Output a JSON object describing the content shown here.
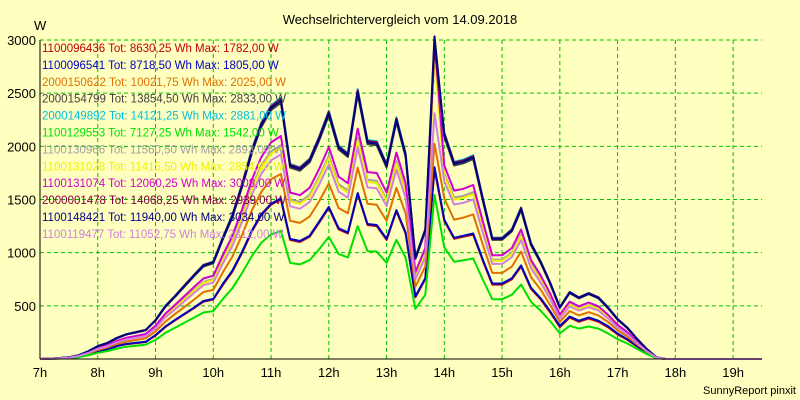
{
  "footer": "SunnyReport pinxit",
  "chart_data": {
    "type": "line",
    "title": "Wechselrichtervergleich vom 14.09.2018",
    "ylabel": "W",
    "xlabel": "",
    "ylim": [
      0,
      3000
    ],
    "xlim": [
      7,
      19.5
    ],
    "yticks": [
      500,
      1000,
      1500,
      2000,
      2500,
      3000
    ],
    "xticks": [
      "7h",
      "8h",
      "9h",
      "10h",
      "11h",
      "12h",
      "13h",
      "14h",
      "15h",
      "16h",
      "17h",
      "18h",
      "19h"
    ],
    "grid": true,
    "legend_position": "top-left",
    "x": [
      7.0,
      7.17,
      7.33,
      7.5,
      7.67,
      7.83,
      8.0,
      8.17,
      8.33,
      8.5,
      8.67,
      8.83,
      9.0,
      9.17,
      9.33,
      9.5,
      9.67,
      9.83,
      10.0,
      10.17,
      10.33,
      10.5,
      10.67,
      10.83,
      11.0,
      11.17,
      11.33,
      11.5,
      11.67,
      11.83,
      12.0,
      12.17,
      12.33,
      12.5,
      12.67,
      12.83,
      13.0,
      13.17,
      13.33,
      13.5,
      13.67,
      13.83,
      14.0,
      14.17,
      14.33,
      14.5,
      14.67,
      14.83,
      15.0,
      15.17,
      15.33,
      15.5,
      15.67,
      15.83,
      16.0,
      16.17,
      16.33,
      16.5,
      16.67,
      16.83,
      17.0,
      17.17,
      17.33,
      17.5,
      17.67,
      17.83,
      18.0,
      18.17,
      18.33,
      18.5,
      18.67,
      18.83,
      19.0,
      19.17,
      19.33,
      19.5
    ],
    "series": [
      {
        "name": "1100096436 Tot: 8630,25 Wh Max: 1782,00 W",
        "color": "#c00000",
        "values": [
          0,
          2,
          5,
          10,
          20,
          40,
          70,
          90,
          120,
          140,
          150,
          160,
          220,
          300,
          360,
          420,
          480,
          540,
          560,
          700,
          820,
          1000,
          1200,
          1350,
          1450,
          1500,
          1120,
          1100,
          1150,
          1280,
          1420,
          1220,
          1180,
          1550,
          1260,
          1250,
          1120,
          1390,
          1180,
          580,
          750,
          1782,
          1300,
          1130,
          1150,
          1170,
          920,
          700,
          700,
          750,
          870,
          660,
          560,
          440,
          300,
          390,
          350,
          380,
          350,
          300,
          230,
          180,
          120,
          60,
          10,
          0,
          0,
          0,
          0,
          0,
          0,
          0,
          0,
          0,
          0,
          0
        ]
      },
      {
        "name": "1100096541 Tot: 8718,50 Wh Max: 1805,00 W",
        "color": "#0000c0",
        "values": [
          0,
          2,
          5,
          10,
          22,
          42,
          72,
          92,
          122,
          142,
          152,
          162,
          225,
          305,
          365,
          425,
          485,
          545,
          565,
          710,
          830,
          1010,
          1210,
          1360,
          1460,
          1510,
          1130,
          1110,
          1160,
          1290,
          1430,
          1230,
          1190,
          1560,
          1270,
          1260,
          1130,
          1400,
          1190,
          590,
          760,
          1805,
          1310,
          1140,
          1160,
          1180,
          930,
          710,
          710,
          760,
          880,
          670,
          570,
          450,
          310,
          400,
          360,
          390,
          360,
          310,
          240,
          185,
          125,
          62,
          10,
          0,
          0,
          0,
          0,
          0,
          0,
          0,
          0,
          0,
          0,
          0
        ]
      },
      {
        "name": "2000150622 Tot: 10021,75 Wh Max: 2025,00 W",
        "color": "#e07000",
        "values": [
          0,
          3,
          6,
          12,
          25,
          50,
          85,
          110,
          140,
          165,
          180,
          195,
          260,
          350,
          420,
          490,
          560,
          630,
          650,
          820,
          960,
          1170,
          1400,
          1570,
          1690,
          1740,
          1300,
          1280,
          1340,
          1480,
          1650,
          1420,
          1370,
          1800,
          1460,
          1450,
          1300,
          1610,
          1370,
          680,
          870,
          2025,
          1510,
          1310,
          1330,
          1360,
          1070,
          810,
          810,
          870,
          1010,
          770,
          650,
          510,
          350,
          450,
          410,
          440,
          410,
          350,
          270,
          210,
          140,
          70,
          12,
          0,
          0,
          0,
          0,
          0,
          0,
          0,
          0,
          0,
          0,
          0
        ]
      },
      {
        "name": "2000154799 Tot: 13854,50 Wh Max: 2833,00 W",
        "color": "#404040",
        "values": [
          0,
          4,
          8,
          16,
          35,
          70,
          120,
          150,
          195,
          230,
          250,
          270,
          360,
          490,
          580,
          680,
          780,
          870,
          900,
          1130,
          1330,
          1620,
          1940,
          2180,
          2340,
          2410,
          1800,
          1770,
          1850,
          2050,
          2290,
          1970,
          1900,
          2490,
          2020,
          2010,
          1800,
          2230,
          1900,
          940,
          1200,
          2833,
          2090,
          1820,
          1840,
          1880,
          1480,
          1120,
          1120,
          1200,
          1400,
          1070,
          900,
          710,
          480,
          620,
          570,
          610,
          570,
          480,
          370,
          290,
          190,
          95,
          16,
          0,
          0,
          0,
          0,
          0,
          0,
          0,
          0,
          0,
          0,
          0
        ]
      },
      {
        "name": "2000149892 Tot: 14121,25 Wh Max: 2881,00 W",
        "color": "#00c0e0",
        "values": [
          0,
          4,
          8,
          16,
          36,
          72,
          122,
          153,
          199,
          234,
          255,
          275,
          367,
          500,
          591,
          693,
          795,
          887,
          917,
          1152,
          1356,
          1651,
          1977,
          2222,
          2385,
          2456,
          1835,
          1804,
          1886,
          2090,
          2334,
          2008,
          1937,
          2538,
          2059,
          2049,
          1835,
          2273,
          1937,
          958,
          1223,
          2881,
          2130,
          1855,
          1876,
          1916,
          1509,
          1142,
          1142,
          1223,
          1427,
          1091,
          917,
          724,
          489,
          632,
          581,
          622,
          581,
          489,
          377,
          296,
          194,
          97,
          16,
          0,
          0,
          0,
          0,
          0,
          0,
          0,
          0,
          0,
          0,
          0
        ]
      },
      {
        "name": "1100129553 Tot: 7127,25 Wh Max: 1542,00 W",
        "color": "#00e000",
        "values": [
          0,
          2,
          4,
          8,
          17,
          34,
          58,
          75,
          98,
          116,
          125,
          135,
          180,
          245,
          292,
          340,
          390,
          437,
          450,
          567,
          665,
          811,
          970,
          1092,
          1172,
          1205,
          904,
          890,
          930,
          1030,
          1148,
          988,
          955,
          1250,
          1015,
          1010,
          904,
          1120,
          955,
          472,
          604,
          1542,
          1050,
          915,
          928,
          945,
          743,
          562,
          562,
          604,
          700,
          538,
          452,
          357,
          242,
          312,
          286,
          306,
          286,
          242,
          186,
          146,
          97,
          48,
          8,
          0,
          0,
          0,
          0,
          0,
          0,
          0,
          0,
          0,
          0,
          0
        ]
      },
      {
        "name": "1100130966 Tot: 11560,50 Wh Max: 2893,00 W",
        "color": "#a0a0a0",
        "values": [
          0,
          3,
          7,
          13,
          29,
          58,
          100,
          125,
          163,
          192,
          209,
          225,
          300,
          409,
          484,
          567,
          651,
          726,
          751,
          943,
          1110,
          1352,
          1619,
          1819,
          1953,
          2011,
          1502,
          1477,
          1544,
          1711,
          1911,
          1644,
          1585,
          2078,
          1686,
          1677,
          1502,
          1861,
          1585,
          784,
          1001,
          2893,
          1744,
          1519,
          1535,
          1569,
          1235,
          935,
          935,
          1001,
          1168,
          893,
          751,
          592,
          400,
          517,
          476,
          509,
          476,
          400,
          309,
          242,
          159,
          79,
          13,
          0,
          0,
          0,
          0,
          0,
          0,
          0,
          0,
          0,
          0,
          0
        ]
      },
      {
        "name": "1100131028 Tot: 11415,50 Wh Max: 2854,00 W",
        "color": "#f0f000",
        "values": [
          0,
          3,
          7,
          13,
          29,
          57,
          99,
          124,
          161,
          190,
          206,
          222,
          297,
          404,
          478,
          560,
          643,
          717,
          742,
          932,
          1097,
          1336,
          1599,
          1797,
          1929,
          1987,
          1484,
          1459,
          1525,
          1690,
          1888,
          1624,
          1566,
          2053,
          1665,
          1657,
          1484,
          1838,
          1566,
          775,
          989,
          2854,
          1723,
          1500,
          1517,
          1550,
          1220,
          923,
          923,
          989,
          1154,
          882,
          742,
          585,
          396,
          511,
          470,
          503,
          470,
          396,
          305,
          239,
          157,
          78,
          13,
          0,
          0,
          0,
          0,
          0,
          0,
          0,
          0,
          0,
          0,
          0
        ]
      },
      {
        "name": "1100131074 Tot: 12060,25 Wh Max: 3008,00 W",
        "color": "#d000d0",
        "values": [
          0,
          3,
          7,
          14,
          30,
          61,
          104,
          130,
          170,
          200,
          218,
          235,
          313,
          426,
          505,
          592,
          679,
          757,
          783,
          984,
          1158,
          1410,
          1688,
          1897,
          2036,
          2097,
          1566,
          1540,
          1610,
          1784,
          1993,
          1714,
          1653,
          2167,
          1758,
          1749,
          1566,
          1941,
          1653,
          818,
          1044,
          3008,
          1819,
          1584,
          1601,
          1636,
          1288,
          975,
          975,
          1044,
          1218,
          931,
          783,
          618,
          418,
          540,
          496,
          531,
          496,
          418,
          322,
          252,
          165,
          83,
          14,
          0,
          0,
          0,
          0,
          0,
          0,
          0,
          0,
          0,
          0,
          0
        ]
      },
      {
        "name": "2000001478 Tot: 14068,25 Wh Max: 2939,00 W",
        "color": "#800040",
        "values": [
          0,
          4,
          8,
          16,
          35,
          71,
          121,
          152,
          198,
          233,
          254,
          274,
          365,
          497,
          589,
          690,
          792,
          883,
          913,
          1147,
          1350,
          1644,
          1969,
          2213,
          2375,
          2446,
          1827,
          1797,
          1878,
          2081,
          2324,
          1999,
          1928,
          2527,
          2050,
          2040,
          1827,
          2263,
          1928,
          954,
          1218,
          2939,
          2121,
          1847,
          1867,
          1908,
          1502,
          1137,
          1137,
          1218,
          1421,
          1086,
          913,
          721,
          487,
          629,
          579,
          619,
          579,
          487,
          376,
          294,
          193,
          96,
          16,
          0,
          0,
          0,
          0,
          0,
          0,
          0,
          0,
          0,
          0,
          0
        ]
      },
      {
        "name": "1100148421 Tot: 11940,00 Wh Max: 3034,00 W",
        "color": "#000080",
        "values": [
          0,
          4,
          8,
          16,
          35,
          70,
          120,
          151,
          197,
          232,
          252,
          272,
          363,
          494,
          585,
          686,
          787,
          878,
          908,
          1140,
          1342,
          1634,
          1957,
          2199,
          2360,
          2431,
          1816,
          1786,
          1866,
          2068,
          2310,
          1987,
          1916,
          2511,
          2037,
          2027,
          1816,
          2249,
          1916,
          948,
          1210,
          3034,
          2108,
          1836,
          1856,
          1896,
          1493,
          1130,
          1130,
          1210,
          1412,
          1079,
          908,
          716,
          484,
          625,
          575,
          615,
          575,
          484,
          373,
          292,
          192,
          96,
          16,
          0,
          0,
          0,
          0,
          0,
          0,
          0,
          0,
          0,
          0,
          0
        ]
      },
      {
        "name": "1100119477 Tot: 11052,75 Wh Max: 2312,00 W",
        "color": "#d080e0",
        "values": [
          0,
          3,
          7,
          13,
          28,
          56,
          96,
          120,
          156,
          184,
          200,
          215,
          287,
          391,
          463,
          542,
          622,
          694,
          718,
          902,
          1062,
          1293,
          1548,
          1740,
          1868,
          1924,
          1437,
          1413,
          1477,
          1637,
          1828,
          1573,
          1517,
          1988,
          1613,
          1605,
          1437,
          1780,
          1517,
          750,
          958,
          2312,
          1669,
          1453,
          1469,
          1501,
          1181,
          894,
          894,
          958,
          1117,
          854,
          718,
          567,
          383,
          495,
          455,
          487,
          455,
          383,
          296,
          231,
          152,
          76,
          13,
          0,
          0,
          0,
          0,
          0,
          0,
          0,
          0,
          0,
          0,
          0
        ]
      }
    ]
  }
}
